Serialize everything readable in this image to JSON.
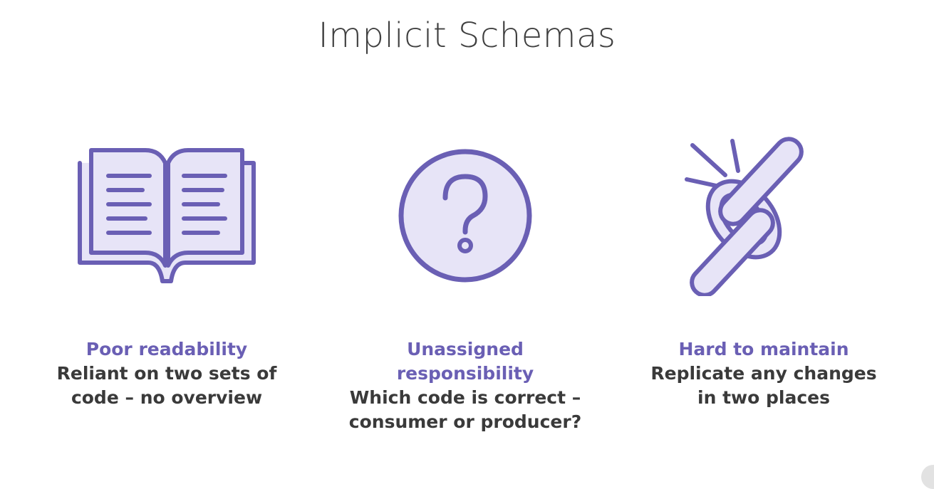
{
  "title": "Implicit Schemas",
  "colors": {
    "accent": "#6a5fb4",
    "icon_fill": "#e7e4f7",
    "text": "#3a3a3a"
  },
  "columns": [
    {
      "icon": "open-book-icon",
      "heading": "Poor readability",
      "description": "Reliant on two sets of\ncode – no overview"
    },
    {
      "icon": "question-mark-icon",
      "heading": "Unassigned\nresponsibility",
      "description": "Which code is correct –\nconsumer or producer?"
    },
    {
      "icon": "broken-chain-icon",
      "heading": "Hard to maintain",
      "description": "Replicate any changes\nin two places"
    }
  ]
}
